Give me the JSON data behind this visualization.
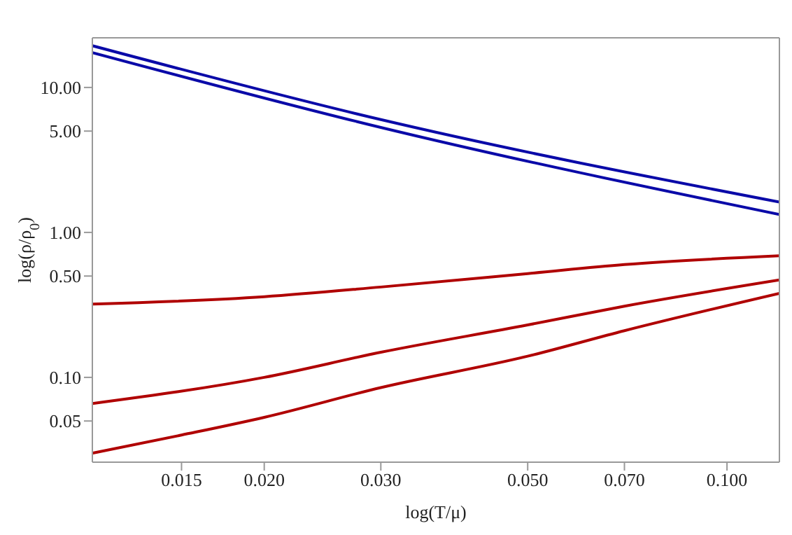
{
  "chart_data": {
    "type": "line",
    "xlabel": "log(T/μ)",
    "ylabel": "log(ρ/ρ$_{0}$)",
    "log": "xy",
    "marker": "none",
    "line_style": "solid",
    "xlim": [
      0.011,
      0.12
    ],
    "ylim": [
      0.026,
      22
    ],
    "xticks": [
      {
        "value": 0.015,
        "label": "0.015"
      },
      {
        "value": 0.02,
        "label": "0.020"
      },
      {
        "value": 0.03,
        "label": "0.030"
      },
      {
        "value": 0.05,
        "label": "0.050"
      },
      {
        "value": 0.07,
        "label": "0.070"
      },
      {
        "value": 0.1,
        "label": "0.100"
      }
    ],
    "yticks": [
      {
        "value": 0.05,
        "label": "0.05"
      },
      {
        "value": 0.1,
        "label": "0.10"
      },
      {
        "value": 0.5,
        "label": "0.50"
      },
      {
        "value": 1,
        "label": "1.00"
      },
      {
        "value": 5,
        "label": "5.00"
      },
      {
        "value": 10,
        "label": "10.00"
      }
    ],
    "series": [
      {
        "color": "#0a0aa8",
        "x": [
          0.011,
          0.03,
          0.12
        ],
        "values": [
          19.4,
          6.0,
          1.62
        ]
      },
      {
        "color": "#0a0aa8",
        "x": [
          0.011,
          0.03,
          0.12
        ],
        "values": [
          17.4,
          5.3,
          1.33
        ]
      },
      {
        "color": "#b00000",
        "x": [
          0.011,
          0.02,
          0.03,
          0.05,
          0.07,
          0.12
        ],
        "values": [
          0.32,
          0.36,
          0.42,
          0.52,
          0.6,
          0.69
        ]
      },
      {
        "color": "#b00000",
        "x": [
          0.011,
          0.02,
          0.03,
          0.05,
          0.07,
          0.12
        ],
        "values": [
          0.066,
          0.1,
          0.149,
          0.23,
          0.31,
          0.47
        ]
      },
      {
        "color": "#b00000",
        "x": [
          0.011,
          0.015,
          0.02,
          0.03,
          0.05,
          0.07,
          0.12
        ],
        "values": [
          0.03,
          0.04,
          0.053,
          0.085,
          0.14,
          0.21,
          0.38
        ]
      }
    ]
  }
}
